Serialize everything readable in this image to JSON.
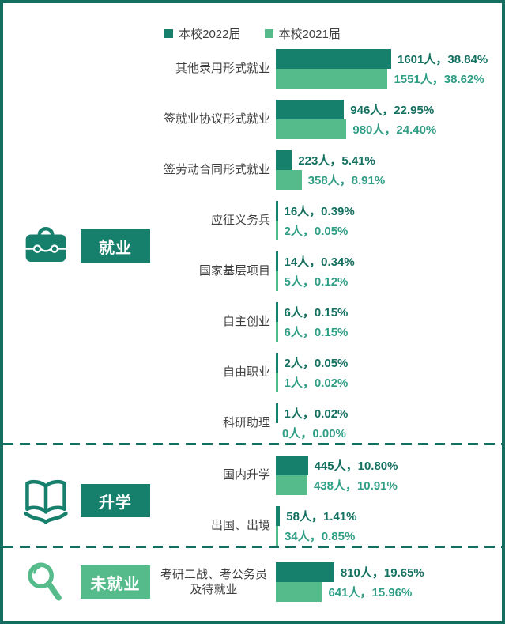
{
  "legend": {
    "items": [
      {
        "label": "本校2022届",
        "color": "#17806d"
      },
      {
        "label": "本校2021届",
        "color": "#55bb8a"
      }
    ]
  },
  "colors": {
    "series1_bar": "#17806d",
    "series2_bar": "#55bb8a",
    "series1_text": "#14705f",
    "series2_text": "#2f9e85",
    "border": "#156f60",
    "label_text": "#3f3f3f"
  },
  "chart_data": {
    "type": "bar",
    "orientation": "horizontal",
    "unit": "人",
    "max_value": 1601,
    "series": [
      {
        "name": "本校2022届",
        "color": "#17806d"
      },
      {
        "name": "本校2021届",
        "color": "#55bb8a"
      }
    ],
    "sections": [
      {
        "id": "employment",
        "badge": "就业",
        "icon": "briefcase-icon",
        "badge_color": "#17806d",
        "icon_color": "#17806d",
        "categories": [
          {
            "label": "其他录用形式就业",
            "rows": [
              {
                "value": 1601,
                "text": "1601人，38.84%"
              },
              {
                "value": 1551,
                "text": "1551人，38.62%"
              }
            ]
          },
          {
            "label": "签就业协议形式就业",
            "rows": [
              {
                "value": 946,
                "text": "946人，22.95%"
              },
              {
                "value": 980,
                "text": "980人，24.40%"
              }
            ]
          },
          {
            "label": "签劳动合同形式就业",
            "rows": [
              {
                "value": 223,
                "text": "223人，5.41%"
              },
              {
                "value": 358,
                "text": "358人，8.91%"
              }
            ]
          },
          {
            "label": "应征义务兵",
            "rows": [
              {
                "value": 16,
                "text": "16人，0.39%"
              },
              {
                "value": 2,
                "text": "2人，0.05%"
              }
            ]
          },
          {
            "label": "国家基层项目",
            "rows": [
              {
                "value": 14,
                "text": "14人，0.34%"
              },
              {
                "value": 5,
                "text": "5人，0.12%"
              }
            ]
          },
          {
            "label": "自主创业",
            "rows": [
              {
                "value": 6,
                "text": "6人，0.15%"
              },
              {
                "value": 6,
                "text": "6人，0.15%"
              }
            ]
          },
          {
            "label": "自由职业",
            "rows": [
              {
                "value": 2,
                "text": "2人，0.05%"
              },
              {
                "value": 1,
                "text": "1人，0.02%"
              }
            ]
          },
          {
            "label": "科研助理",
            "rows": [
              {
                "value": 1,
                "text": "1人，0.02%"
              },
              {
                "value": 0,
                "text": "0人，0.00%"
              }
            ]
          }
        ]
      },
      {
        "id": "further-study",
        "badge": "升学",
        "icon": "open-book-icon",
        "badge_color": "#17806d",
        "icon_color": "#17806d",
        "categories": [
          {
            "label": "国内升学",
            "rows": [
              {
                "value": 445,
                "text": "445人，10.80%"
              },
              {
                "value": 438,
                "text": "438人，10.91%"
              }
            ]
          },
          {
            "label": "出国、出境",
            "rows": [
              {
                "value": 58,
                "text": "58人，1.41%"
              },
              {
                "value": 34,
                "text": "34人，0.85%"
              }
            ]
          }
        ]
      },
      {
        "id": "not-employed",
        "badge": "未就业",
        "icon": "magnifier-icon",
        "badge_color": "#55bb8a",
        "icon_color": "#55bb8a",
        "categories": [
          {
            "label": "考研二战、考公务员\n及待就业",
            "rows": [
              {
                "value": 810,
                "text": "810人，19.65%"
              },
              {
                "value": 641,
                "text": "641人，15.96%"
              }
            ]
          }
        ]
      }
    ]
  }
}
